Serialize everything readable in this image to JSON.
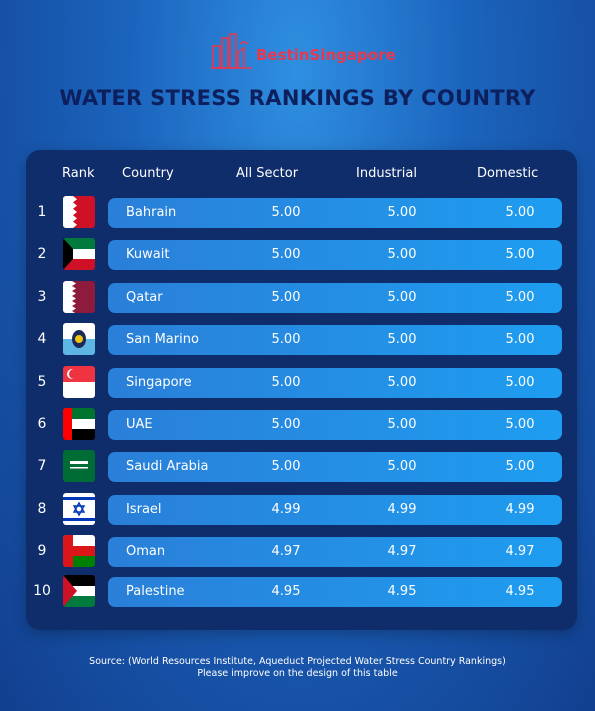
{
  "brand": {
    "part1": "Best",
    "part2": "in",
    "part3": "Singapore"
  },
  "title": "WATER STRESS RANKINGS BY COUNTRY",
  "colors": {
    "bar": "#1e9df0",
    "panel": "#0f2c6b",
    "title": "#0d1f5c",
    "brand": "#e8384f"
  },
  "table": {
    "headers": [
      "Rank",
      "Country",
      "All Sector",
      "Industrial",
      "Domestic"
    ]
  },
  "chart_data": {
    "type": "table",
    "columns": [
      "Rank",
      "Country",
      "All Sector",
      "Industrial",
      "Domestic"
    ],
    "rows": [
      {
        "rank": "1",
        "country": "Bahrain",
        "all": "5.00",
        "ind": "5.00",
        "dom": "5.00",
        "flag": "bahrain-flag-icon"
      },
      {
        "rank": "2",
        "country": "Kuwait",
        "all": "5.00",
        "ind": "5.00",
        "dom": "5.00",
        "flag": "kuwait-flag-icon"
      },
      {
        "rank": "3",
        "country": "Qatar",
        "all": "5.00",
        "ind": "5.00",
        "dom": "5.00",
        "flag": "qatar-flag-icon"
      },
      {
        "rank": "4",
        "country": "San Marino",
        "all": "5.00",
        "ind": "5.00",
        "dom": "5.00",
        "flag": "san-marino-flag-icon"
      },
      {
        "rank": "5",
        "country": "Singapore",
        "all": "5.00",
        "ind": "5.00",
        "dom": "5.00",
        "flag": "singapore-flag-icon"
      },
      {
        "rank": "6",
        "country": "UAE",
        "all": "5.00",
        "ind": "5.00",
        "dom": "5.00",
        "flag": "uae-flag-icon"
      },
      {
        "rank": "7",
        "country": "Saudi Arabia",
        "all": "5.00",
        "ind": "5.00",
        "dom": "5.00",
        "flag": "saudi-arabia-flag-icon"
      },
      {
        "rank": "8",
        "country": "Israel",
        "all": "4.99",
        "ind": "4.99",
        "dom": "4.99",
        "flag": "israel-flag-icon"
      },
      {
        "rank": "9",
        "country": "Oman",
        "all": "4.97",
        "ind": "4.97",
        "dom": "4.97",
        "flag": "oman-flag-icon"
      },
      {
        "rank": "10",
        "country": "Palestine",
        "all": "4.95",
        "ind": "4.95",
        "dom": "4.95",
        "flag": "palestine-flag-icon"
      }
    ]
  },
  "source": {
    "line1": "Source: (World Resources Institute, Aqueduct Projected Water Stress Country Rankings)",
    "line2": "Please improve on the design of this table"
  }
}
